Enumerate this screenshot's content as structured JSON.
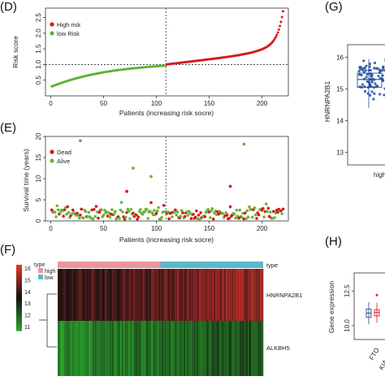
{
  "panels": {
    "D": "(D)",
    "E": "(E)",
    "F": "(F)",
    "G": "(G)",
    "H": "(H)"
  },
  "colors": {
    "high": "#d7191c",
    "low": "#5fb234",
    "dead": "#d7191c",
    "alive": "#6db33f",
    "type_high": "#e8959b",
    "type_low": "#5bb8c9",
    "box_blue": "#1f4f9c",
    "heat_red": "#e3342f",
    "heat_black": "#111111",
    "heat_green": "#2ca02c"
  },
  "chart_data": [
    {
      "id": "D",
      "type": "scatter",
      "title": "",
      "xlabel": "Patients (increasing risk socre)",
      "ylabel": "Risk score",
      "xlim": [
        -5,
        225
      ],
      "ylim": [
        0.0,
        2.8
      ],
      "xticks": [
        "0",
        "50",
        "100",
        "150",
        "200"
      ],
      "yticks": [
        "0.5",
        "1.0",
        "1.5",
        "2.0",
        "2.5"
      ],
      "cutoff_x": 109,
      "cutoff_y": 1.0,
      "legend": [
        "High risk",
        "low Risk"
      ],
      "legend_position": "top-left",
      "n_points": 220,
      "series": [
        {
          "name": "low Risk",
          "x_range": [
            1,
            109
          ],
          "y_start": 0.3,
          "y_end": 1.0
        },
        {
          "name": "High risk",
          "x_range": [
            110,
            220
          ],
          "y_start": 1.0,
          "y_end": 2.7
        }
      ]
    },
    {
      "id": "E",
      "type": "scatter",
      "title": "",
      "xlabel": "Patients (increasing risk socre)",
      "ylabel": "Survival time (years)",
      "xlim": [
        -5,
        225
      ],
      "ylim": [
        0,
        20
      ],
      "xticks": [
        "0",
        "50",
        "100",
        "150",
        "200"
      ],
      "yticks": [
        "0",
        "5",
        "10",
        "15",
        "20"
      ],
      "cutoff_x": 109,
      "legend": [
        "Dead",
        "Alive"
      ],
      "legend_position": "top-left",
      "outliers": [
        {
          "x": 28,
          "y": 19,
          "status": "Alive"
        },
        {
          "x": 72,
          "y": 7,
          "status": "Dead"
        },
        {
          "x": 78,
          "y": 12.5,
          "status": "Alive"
        },
        {
          "x": 95,
          "y": 10.5,
          "status": "Alive"
        },
        {
          "x": 183,
          "y": 18.2,
          "status": "Alive"
        },
        {
          "x": 170,
          "y": 8.2,
          "status": "Dead"
        }
      ]
    },
    {
      "id": "F",
      "type": "heatmap",
      "title": "",
      "rows": [
        "HNRNPA2B1",
        "ALKBH5"
      ],
      "type_label": "type",
      "type_legend": [
        "high",
        "low"
      ],
      "type_split": 0.5,
      "scale_ticks": [
        "16",
        "15",
        "14",
        "13",
        "12",
        "11"
      ],
      "scale_range": [
        11,
        16
      ]
    },
    {
      "id": "G",
      "type": "box",
      "ylabel": "HNRNPA2B1",
      "yticks": [
        "16",
        "15",
        "14",
        "13"
      ],
      "ylim": [
        12.6,
        16.4
      ],
      "group_label": "high",
      "box": {
        "q1": 15.05,
        "median": 15.3,
        "q3": 15.5,
        "whisker_low": 14.4,
        "whisker_high": 15.95
      }
    },
    {
      "id": "H",
      "type": "box",
      "ylabel": "Gene expression",
      "yticks": [
        "10.0",
        "12.5"
      ],
      "categories": [
        "FTO",
        "KIAA"
      ],
      "series": [
        {
          "name": "FTO",
          "median": 10.9,
          "q1": 10.6,
          "q3": 11.2
        },
        {
          "name": "KIAA",
          "median": 10.95,
          "q1": 10.7,
          "q3": 11.15
        }
      ]
    }
  ]
}
